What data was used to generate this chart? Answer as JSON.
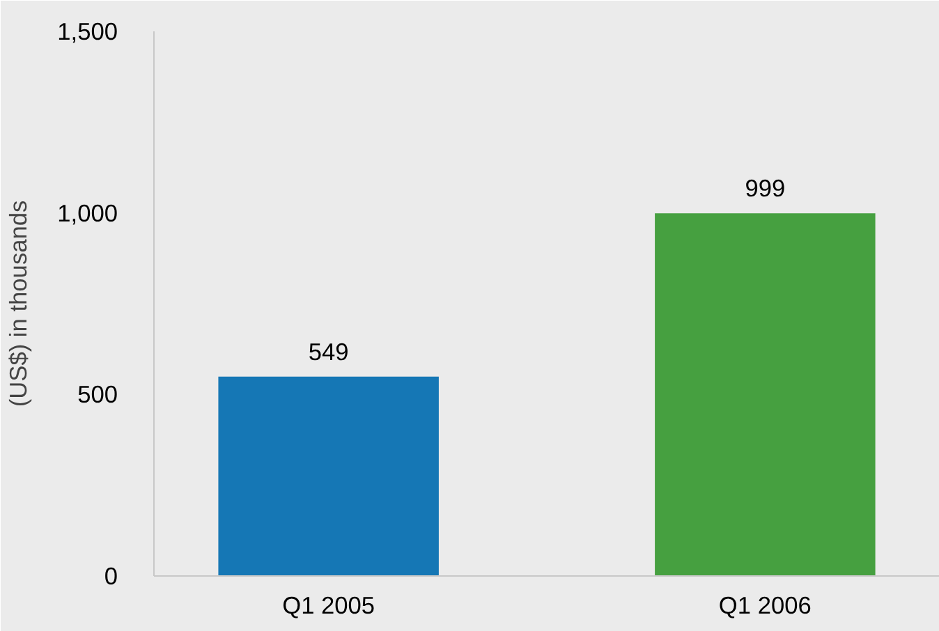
{
  "chart_data": {
    "type": "bar",
    "ylabel": "(US$) in thousands",
    "categories": [
      "Q1 2005",
      "Q1 2006"
    ],
    "values": [
      549,
      999
    ],
    "colors": [
      "#1577b5",
      "#46a040"
    ],
    "ylim": [
      0,
      1500
    ],
    "yticks": [
      0,
      {
        "value": 500,
        "label": "500"
      },
      {
        "value": 1000,
        "label": "1,000"
      },
      {
        "value": 1500,
        "label": "1,500"
      }
    ],
    "data_labels": true,
    "grid": false
  }
}
